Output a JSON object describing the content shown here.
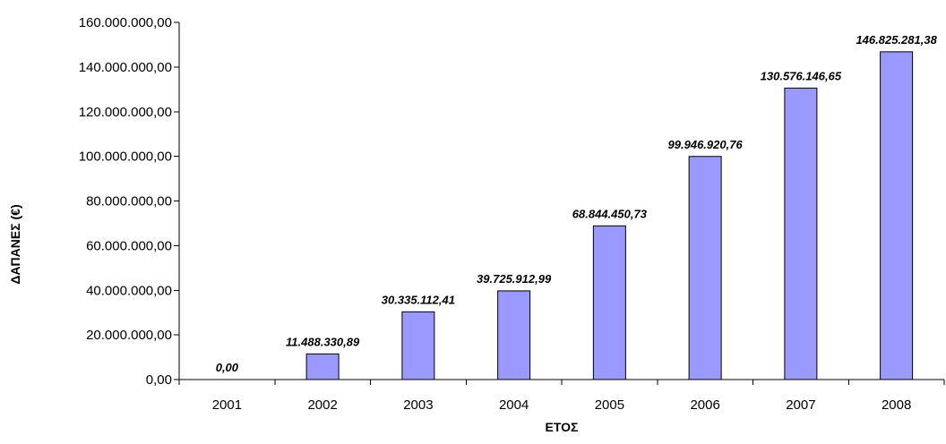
{
  "chart_data": {
    "type": "bar",
    "title": "",
    "xlabel": "ΕΤΟΣ",
    "ylabel": "ΔΑΠΑΝΕΣ (€)",
    "categories": [
      "2001",
      "2002",
      "2003",
      "2004",
      "2005",
      "2006",
      "2007",
      "2008"
    ],
    "values": [
      0.0,
      11488330.89,
      30335112.41,
      39725912.99,
      68844450.73,
      99946920.76,
      130576146.65,
      146825281.38
    ],
    "data_labels": [
      "0,00",
      "11.488.330,89",
      "30.335.112,41",
      "39.725.912,99",
      "68.844.450,73",
      "99.946.920,76",
      "130.576.146,65",
      "146.825.281,38"
    ],
    "ylim": [
      0,
      160000000
    ],
    "yticks": [
      0,
      20000000,
      40000000,
      60000000,
      80000000,
      100000000,
      120000000,
      140000000,
      160000000
    ],
    "ytick_labels": [
      "0,00",
      "20.000.000,00",
      "40.000.000,00",
      "60.000.000,00",
      "80.000.000,00",
      "100.000.000,00",
      "120.000.000,00",
      "140.000.000,00",
      "160.000.000,00"
    ],
    "grid": false,
    "legend": "none",
    "bar_color": "#9999ff"
  }
}
